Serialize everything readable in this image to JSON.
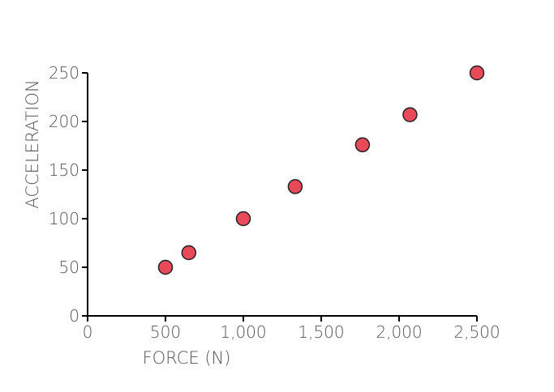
{
  "chart_data": {
    "type": "scatter",
    "title": "",
    "xlabel": "FORCE (N)",
    "ylabel": "ACCELERATION",
    "xlim": [
      0,
      2500
    ],
    "ylim": [
      0,
      250
    ],
    "x_ticks": [
      "0",
      "500",
      "1,000",
      "1,500",
      "2,000",
      "2,500"
    ],
    "y_ticks": [
      "0",
      "50",
      "100",
      "150",
      "200",
      "250"
    ],
    "grid": false,
    "legend": "none",
    "marker_color": "#e84a5a",
    "series": [
      {
        "points": [
          {
            "x": 500,
            "y": 50
          },
          {
            "x": 650,
            "y": 65
          },
          {
            "x": 1000,
            "y": 100
          },
          {
            "x": 1333,
            "y": 133
          },
          {
            "x": 1765,
            "y": 176
          },
          {
            "x": 2070,
            "y": 207
          },
          {
            "x": 2500,
            "y": 250
          }
        ]
      }
    ]
  }
}
